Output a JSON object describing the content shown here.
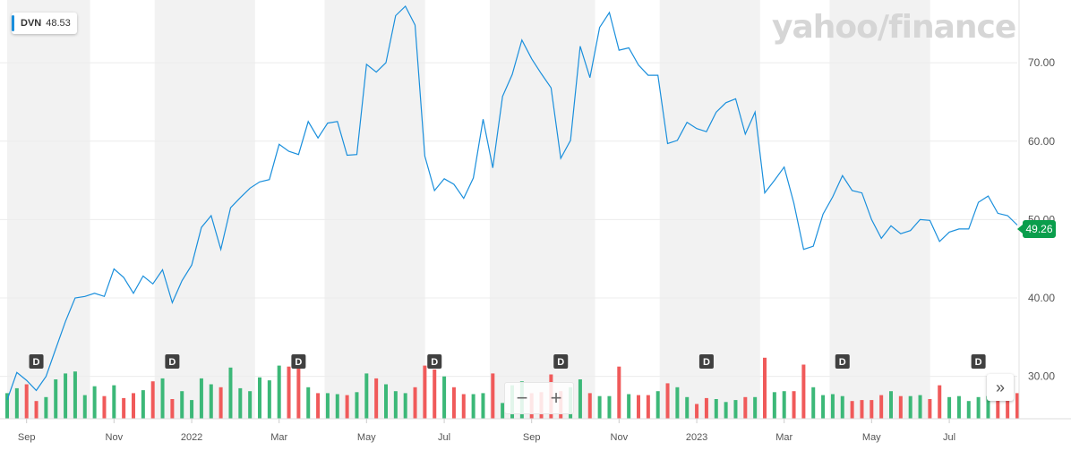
{
  "legend": {
    "symbol": "DVN",
    "value": "48.53"
  },
  "brand": "yahoo/finance",
  "price_tag": "49.26",
  "zoom": {
    "minus": "−",
    "plus": "+"
  },
  "expand_icon": "»",
  "dividend_marker": "D",
  "colors": {
    "line": "#1a8fdc",
    "up": "#3cb878",
    "down": "#f05a5a",
    "tag": "#0a9e4c",
    "band": "#f2f2f2"
  },
  "chart_data": {
    "type": "line",
    "symbol": "DVN",
    "y_ticks": [
      "30.00",
      "40.00",
      "50.00",
      "60.00",
      "70.00"
    ],
    "ylim": [
      24.6,
      78
    ],
    "x_ticks": [
      {
        "label": "Sep",
        "idx": 2
      },
      {
        "label": "Nov",
        "idx": 11
      },
      {
        "label": "2022",
        "idx": 19
      },
      {
        "label": "Mar",
        "idx": 28
      },
      {
        "label": "May",
        "idx": 37
      },
      {
        "label": "Jul",
        "idx": 45
      },
      {
        "label": "Sep",
        "idx": 54
      },
      {
        "label": "Nov",
        "idx": 63
      },
      {
        "label": "2023",
        "idx": 71
      },
      {
        "label": "Mar",
        "idx": 80
      },
      {
        "label": "May",
        "idx": 89
      },
      {
        "label": "Jul",
        "idx": 97
      }
    ],
    "price": [
      27.0,
      30.5,
      29.5,
      28.2,
      30.0,
      33.5,
      37.0,
      40.0,
      40.2,
      40.6,
      40.2,
      43.7,
      42.6,
      40.6,
      42.8,
      41.8,
      43.6,
      39.4,
      42.2,
      44.2,
      49.0,
      50.5,
      46.2,
      51.5,
      52.8,
      54.0,
      54.8,
      55.1,
      59.6,
      58.7,
      58.3,
      62.5,
      60.4,
      62.3,
      62.5,
      58.2,
      58.3,
      69.8,
      68.8,
      70.0,
      76.0,
      77.2,
      74.8,
      58.1,
      53.7,
      55.2,
      54.5,
      52.7,
      55.3,
      62.8,
      56.6,
      65.7,
      68.5,
      72.9,
      70.5,
      68.6,
      66.8,
      57.8,
      60.1,
      72.1,
      68.1,
      74.5,
      76.4,
      71.6,
      71.9,
      69.7,
      68.4,
      68.4,
      59.7,
      60.1,
      62.4,
      61.6,
      61.2,
      63.7,
      64.9,
      65.4,
      60.9,
      63.7,
      53.4,
      55.0,
      56.7,
      52.1,
      46.2,
      46.6,
      50.7,
      52.9,
      55.6,
      53.7,
      53.4,
      50.0,
      47.6,
      49.2,
      48.2,
      48.6,
      50.0,
      49.9,
      47.2,
      48.4,
      48.8,
      48.8,
      52.2,
      53.0,
      50.8,
      50.5,
      49.3
    ],
    "volume": [
      0.26,
      0.31,
      0.35,
      0.18,
      0.22,
      0.4,
      0.46,
      0.48,
      0.24,
      0.33,
      0.23,
      0.34,
      0.21,
      0.26,
      0.29,
      0.38,
      0.41,
      0.2,
      0.28,
      0.19,
      0.41,
      0.35,
      0.32,
      0.52,
      0.31,
      0.28,
      0.42,
      0.39,
      0.54,
      0.53,
      0.55,
      0.32,
      0.26,
      0.26,
      0.25,
      0.24,
      0.27,
      0.46,
      0.41,
      0.35,
      0.28,
      0.26,
      0.32,
      0.54,
      0.5,
      0.43,
      0.32,
      0.25,
      0.25,
      0.26,
      0.46,
      0.16,
      0.34,
      0.38,
      0.26,
      0.27,
      0.45,
      0.28,
      0.32,
      0.4,
      0.26,
      0.23,
      0.23,
      0.53,
      0.25,
      0.24,
      0.24,
      0.28,
      0.36,
      0.32,
      0.22,
      0.15,
      0.21,
      0.2,
      0.17,
      0.19,
      0.22,
      0.22,
      0.62,
      0.27,
      0.28,
      0.28,
      0.55,
      0.32,
      0.24,
      0.25,
      0.23,
      0.18,
      0.19,
      0.19,
      0.24,
      0.28,
      0.23,
      0.23,
      0.24,
      0.2,
      0.34,
      0.22,
      0.23,
      0.18,
      0.22,
      0.23,
      0.24,
      0.34,
      0.26
    ],
    "dividend_idx": [
      3,
      17,
      30,
      44,
      57,
      72,
      86,
      100
    ]
  }
}
